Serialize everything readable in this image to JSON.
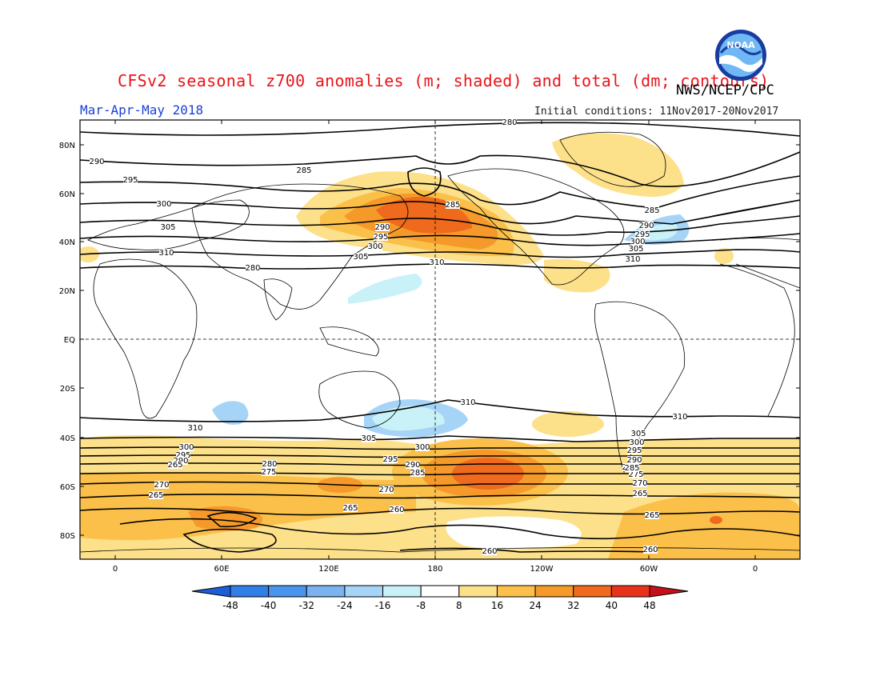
{
  "title": "CFSv2 seasonal z700 anomalies (m; shaded) and total (dm; contours)",
  "agency": "NWS/NCEP/CPC",
  "season": "Mar-Apr-May 2018",
  "init_conditions": "Initial conditions: 11Nov2017-20Nov2017",
  "logo_text": "NOAA",
  "colors": {
    "title": "#e8141a",
    "season": "#1b3fd8",
    "logo_outer": "#1a3c9e",
    "logo_inner": "#6fb8f5"
  },
  "lat_ticks": [
    "80N",
    "60N",
    "40N",
    "20N",
    "EQ",
    "20S",
    "40S",
    "60S",
    "80S"
  ],
  "lon_ticks": [
    "0",
    "60E",
    "120E",
    "180",
    "120W",
    "60W",
    "0"
  ],
  "colorbar": {
    "values": [
      "-48",
      "-40",
      "-32",
      "-24",
      "-16",
      "-8",
      "8",
      "16",
      "24",
      "32",
      "40",
      "48"
    ],
    "colors": [
      "#1a5fd6",
      "#2f7fe6",
      "#4a95ec",
      "#7ab3f0",
      "#a6d4f7",
      "#c8f2f8",
      "#ffffff",
      "#fde08a",
      "#fbc04a",
      "#f59a2a",
      "#ef6a1c",
      "#e8321c",
      "#c6101a"
    ]
  },
  "contour_labels": [
    "280",
    "285",
    "290",
    "295",
    "300",
    "305",
    "310",
    "280",
    "285",
    "290",
    "295",
    "300",
    "305",
    "310",
    "285",
    "290",
    "295",
    "300",
    "305",
    "310",
    "310",
    "305",
    "300",
    "295",
    "290",
    "285",
    "280",
    "275",
    "270",
    "265",
    "260",
    "300",
    "295",
    "290",
    "265",
    "280",
    "275",
    "270",
    "265",
    "265",
    "270",
    "285",
    "290",
    "295",
    "300",
    "305",
    "310",
    "310",
    "265",
    "260",
    "260"
  ]
}
